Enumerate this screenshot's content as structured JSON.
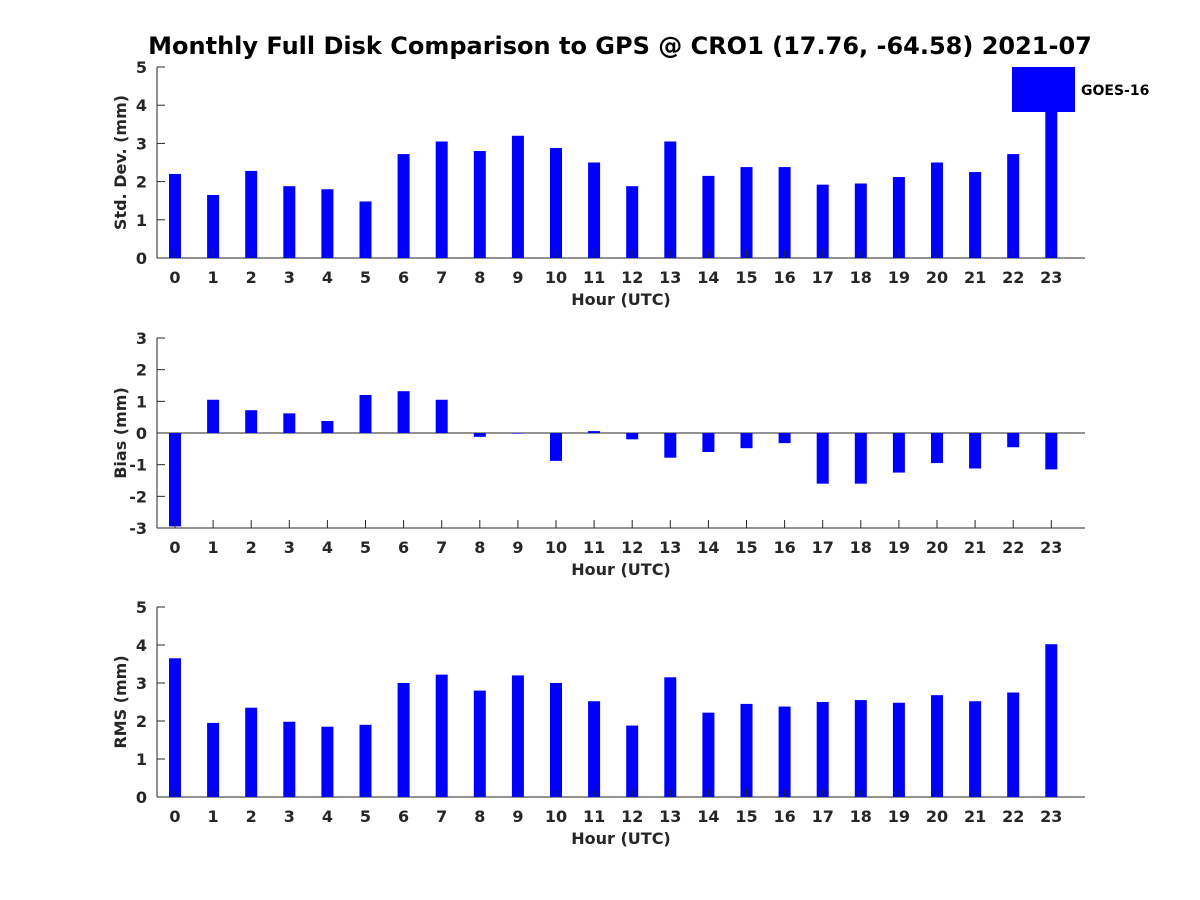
{
  "chart_data": {
    "type": "bar",
    "title": "Monthly Full Disk Comparison to GPS @ CRO1 (17.76, -64.58) 2021-07",
    "legend": {
      "label": "GOES-16",
      "placement": "top-right"
    },
    "bar_color": "#0000ff",
    "categories": [
      "0",
      "1",
      "2",
      "3",
      "4",
      "5",
      "6",
      "7",
      "8",
      "9",
      "10",
      "11",
      "12",
      "13",
      "14",
      "15",
      "16",
      "17",
      "18",
      "19",
      "20",
      "21",
      "22",
      "23"
    ],
    "panels": [
      {
        "id": "std",
        "ylabel": "Std. Dev. (mm)",
        "xlabel": "Hour (UTC)",
        "ylim": [
          0,
          5
        ],
        "yticks": [
          0,
          1,
          2,
          3,
          4,
          5
        ],
        "zero_line": false,
        "values": [
          2.2,
          1.65,
          2.28,
          1.88,
          1.8,
          1.48,
          2.72,
          3.05,
          2.8,
          3.2,
          2.88,
          2.5,
          1.88,
          3.05,
          2.15,
          2.38,
          2.38,
          1.92,
          1.95,
          2.12,
          2.5,
          2.25,
          2.72,
          3.9
        ]
      },
      {
        "id": "bias",
        "ylabel": "Bias (mm)",
        "xlabel": "Hour (UTC)",
        "ylim": [
          -3,
          3
        ],
        "yticks": [
          -3,
          -2,
          -1,
          0,
          1,
          2,
          3
        ],
        "zero_line": true,
        "values": [
          -2.95,
          1.05,
          0.72,
          0.62,
          0.38,
          1.2,
          1.32,
          1.05,
          -0.12,
          -0.02,
          -0.88,
          0.06,
          -0.2,
          -0.78,
          -0.6,
          -0.48,
          -0.32,
          -1.6,
          -1.6,
          -1.25,
          -0.95,
          -1.12,
          -0.45,
          -1.15
        ]
      },
      {
        "id": "rms",
        "ylabel": "RMS (mm)",
        "xlabel": "Hour (UTC)",
        "ylim": [
          0,
          5
        ],
        "yticks": [
          0,
          1,
          2,
          3,
          4,
          5
        ],
        "zero_line": false,
        "values": [
          3.65,
          1.95,
          2.35,
          1.98,
          1.85,
          1.9,
          3.0,
          3.22,
          2.8,
          3.2,
          3.0,
          2.52,
          1.88,
          3.15,
          2.22,
          2.45,
          2.38,
          2.5,
          2.55,
          2.48,
          2.68,
          2.52,
          2.75,
          4.02
        ]
      }
    ]
  }
}
